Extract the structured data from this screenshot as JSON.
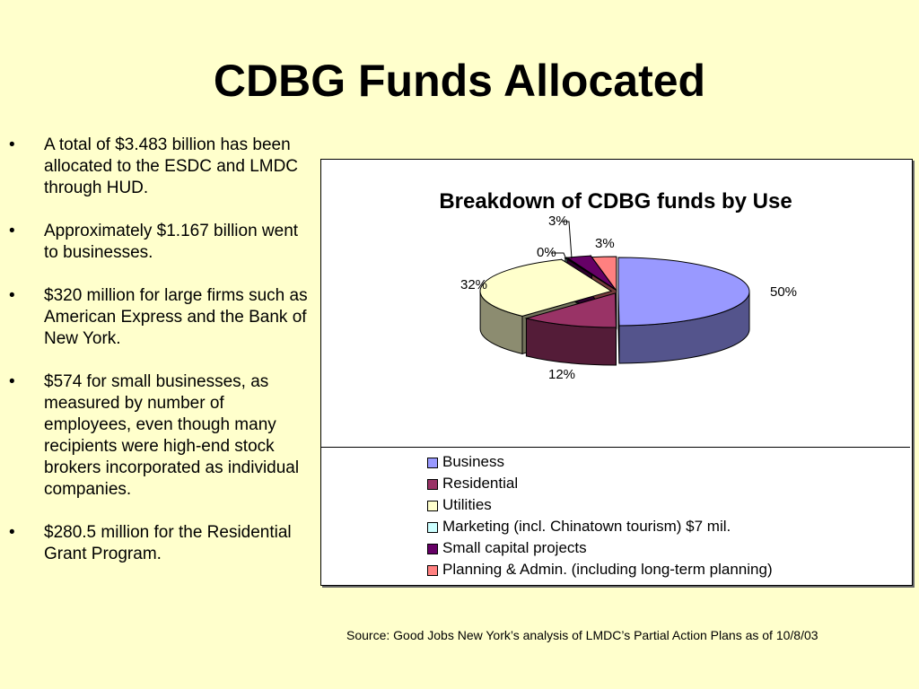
{
  "slide": {
    "title": "CDBG Funds Allocated",
    "bullets": [
      "A total of $3.483 billion has been allocated to the ESDC and LMDC through HUD.",
      "Approximately $1.167 billion went to businesses.",
      "$320 million for large firms such as American Express and the Bank of New York.",
      "$574 for small businesses, as measured by number of employees, even though many recipients were high-end stock brokers incorporated as individual companies.",
      "$280.5 million for the Residential Grant Program."
    ],
    "bullet_char": "•",
    "source": "Source: Good Jobs New York’s analysis of LMDC’s Partial Action Plans as of 10/8/03"
  },
  "chart_data": {
    "type": "pie",
    "style": "3d-exploded",
    "title": "Breakdown of CDBG funds by Use",
    "legend_position": "bottom",
    "slices": [
      {
        "label": "Business",
        "value": 50,
        "display": "50%",
        "color": "#9999ff"
      },
      {
        "label": "Residential",
        "value": 12,
        "display": "12%",
        "color": "#993366"
      },
      {
        "label": "Utilities",
        "value": 32,
        "display": "32%",
        "color": "#ffffcc"
      },
      {
        "label": "Marketing (incl. Chinatown tourism) $7 mil.",
        "value": 0.2,
        "display": "0%",
        "color": "#ccffff"
      },
      {
        "label": "Small capital projects",
        "value": 3,
        "display": "3%",
        "color": "#660066"
      },
      {
        "label": "Planning & Admin. (including long-term planning)",
        "value": 3,
        "display": "3%",
        "color": "#ff8080"
      }
    ]
  }
}
